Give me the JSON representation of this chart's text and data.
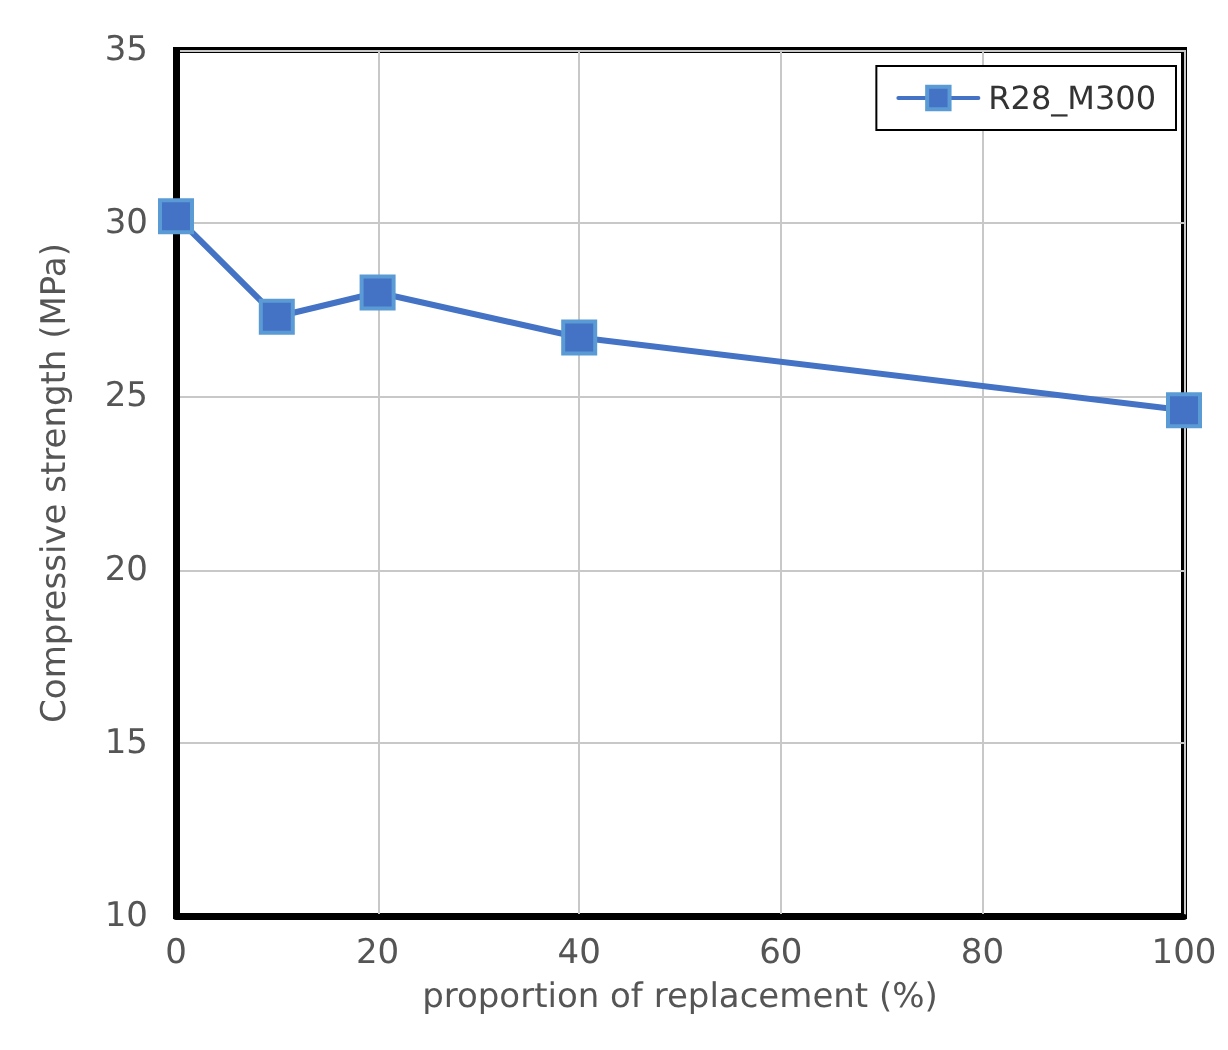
{
  "chart_data": {
    "type": "line",
    "xlabel": "proportion of replacement (%)",
    "ylabel": "Compressive strength (MPa)",
    "x": [
      0,
      10,
      20,
      40,
      100
    ],
    "series": [
      {
        "name": "R28_M300",
        "color": "#4472c4",
        "values": [
          30.2,
          27.3,
          28.0,
          26.7,
          24.6
        ]
      }
    ],
    "xlim": [
      0,
      100
    ],
    "xticks": [
      0,
      20,
      40,
      60,
      80,
      100
    ],
    "ylim": [
      10,
      35
    ],
    "yticks": [
      10,
      15,
      20,
      25,
      30,
      35
    ],
    "grid": true,
    "legend": "top right",
    "marker": "square",
    "line_style": "solid"
  }
}
